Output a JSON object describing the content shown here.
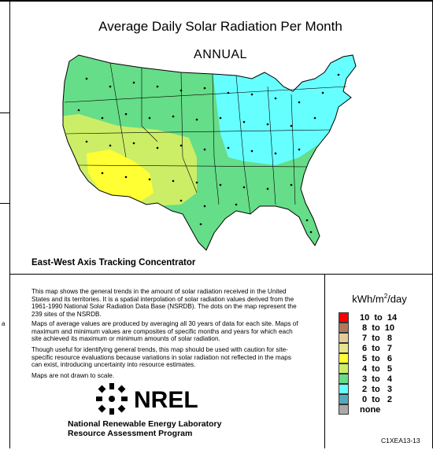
{
  "map": {
    "title": "Average Daily Solar Radiation Per Month",
    "period": "ANNUAL",
    "collector_type": "East-West Axis Tracking Concentrator"
  },
  "description": {
    "para1": "This map shows the general trends in the amount of solar radiation received in the United States and its territories. It is a spatial interpolation of solar radiation values derived from the 1961-1990 National Solar Radiation Data Base (NSRDB). The dots on the map represent the 239 sites of the NSRDB.",
    "para2": "Maps of average values are produced by averaging all 30 years of data for each site. Maps of maximum and minimum values are composites of specific months and years for which each site achieved its maximum or minimum amounts of solar radiation.",
    "para3": "Though useful for identifying general trends, this map should be used with caution for site-specific resource evaluations because variations in solar radiation not reflected in the maps can exist, introducing uncertainty into resource estimates.",
    "para4": "Maps are not drawn to scale."
  },
  "legend": {
    "unit": "kWh/m",
    "unit_sup": "2",
    "unit_suffix": "/day",
    "items": [
      {
        "label": "10  to  14",
        "color": "#ff0000"
      },
      {
        "label": " 8  to  10",
        "color": "#b07a5a"
      },
      {
        "label": " 7  to   8",
        "color": "#e6cc9a"
      },
      {
        "label": " 6  to   7",
        "color": "#e6e68a"
      },
      {
        "label": " 5  to   6",
        "color": "#ffff33"
      },
      {
        "label": " 4  to   5",
        "color": "#ccee66"
      },
      {
        "label": " 3  to   4",
        "color": "#66dd88"
      },
      {
        "label": " 2  to   3",
        "color": "#66ffff"
      },
      {
        "label": " 0  to   2",
        "color": "#55aabb"
      },
      {
        "label": "none",
        "color": "#aaaaaa"
      }
    ]
  },
  "org": {
    "logo_text": "NREL",
    "name_line1": "National Renewable Energy Laboratory",
    "name_line2": "Resource Assessment Program"
  },
  "map_code": "C1XEA13-13",
  "side_mark": "a"
}
